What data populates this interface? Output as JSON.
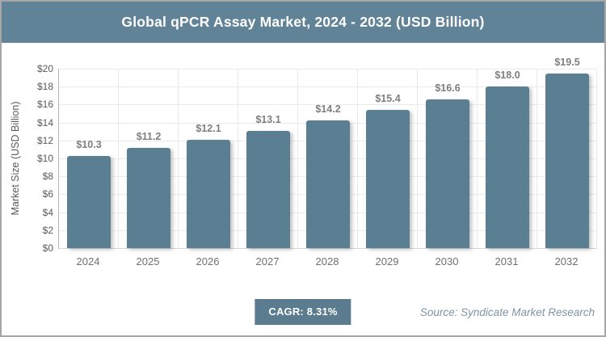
{
  "window": {
    "border_color": "#a6a6a6",
    "background": "#ffffff"
  },
  "header": {
    "title": "Global qPCR Assay Market, 2024 - 2032 (USD Billion)",
    "bg": "#618398",
    "text_color": "#ffffff"
  },
  "chart_data": {
    "type": "bar",
    "title": "Global qPCR Assay Market, 2024 - 2032 (USD Billion)",
    "categories": [
      "2024",
      "2025",
      "2026",
      "2027",
      "2028",
      "2029",
      "2030",
      "2031",
      "2032"
    ],
    "values": [
      10.3,
      11.2,
      12.1,
      13.1,
      14.2,
      15.4,
      16.6,
      18.0,
      19.5
    ],
    "bar_labels": [
      "$10.3",
      "$11.2",
      "$12.1",
      "$13.1",
      "$14.2",
      "$15.4",
      "$16.6",
      "$18.0",
      "$19.5"
    ],
    "xlabel": "",
    "ylabel": "Market Size (USD Billion)",
    "ylim": [
      0,
      20
    ],
    "ytick_step": 2,
    "yticks": [
      "$0",
      "$2",
      "$4",
      "$6",
      "$8",
      "$10",
      "$12",
      "$14",
      "$16",
      "$18",
      "$20"
    ],
    "grid": true,
    "legend_position": "none",
    "bar_color": "#5b7f92"
  },
  "footer": {
    "cagr_label": "CAGR: 8.31%",
    "cagr_bg": "#5a7c8e",
    "source": "Source: Syndicate Market Research"
  }
}
